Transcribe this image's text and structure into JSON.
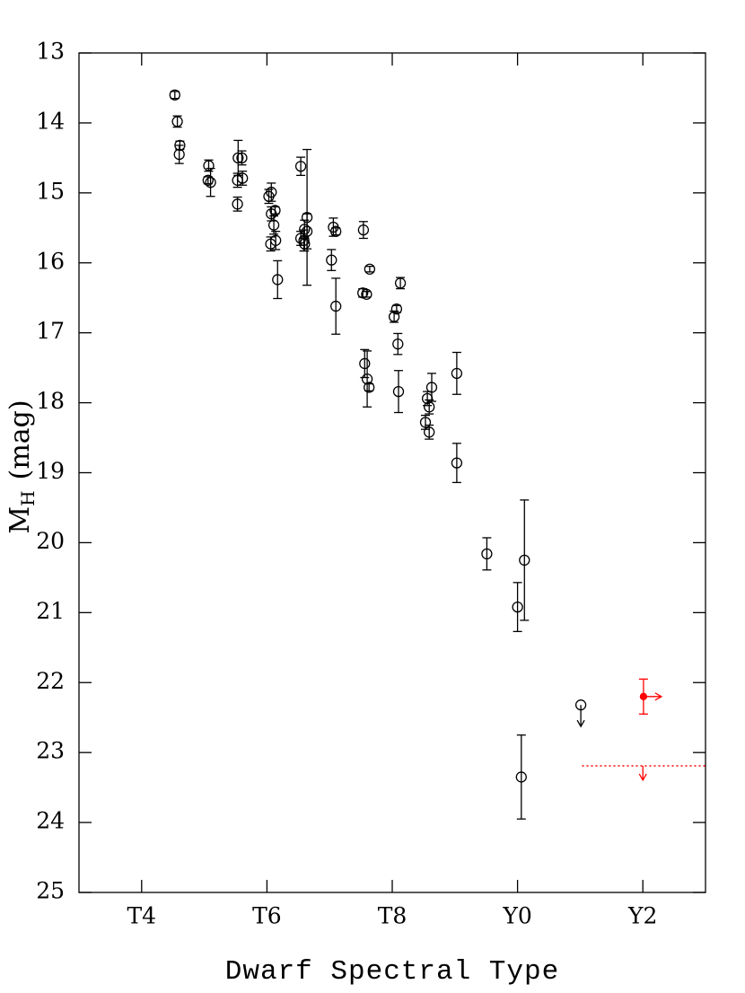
{
  "chart_data": {
    "type": "scatter",
    "xlabel": "Dwarf Spectral Type",
    "ylabel": {
      "main": "M",
      "sub": "H",
      "unit": "(mag)"
    },
    "xlim": [
      3,
      13
    ],
    "ylim": [
      13,
      25
    ],
    "y_inverted": true,
    "xticks": [
      {
        "value": 4,
        "label": "T4"
      },
      {
        "value": 6,
        "label": "T6"
      },
      {
        "value": 8,
        "label": "T8"
      },
      {
        "value": 10,
        "label": "Y0"
      },
      {
        "value": 12,
        "label": "Y2"
      }
    ],
    "yticks": [
      13,
      14,
      15,
      16,
      17,
      18,
      19,
      20,
      21,
      22,
      23,
      24,
      25
    ],
    "series": [
      {
        "color": "#000000",
        "marker": "open",
        "x": [
          4.53,
          4.57,
          4.61,
          4.6,
          5.07,
          5.06,
          5.1,
          5.54,
          5.6,
          5.61,
          5.53,
          5.53,
          6.03,
          6.07,
          6.07,
          6.13,
          6.11,
          6.06,
          6.14,
          6.17,
          6.54,
          6.54,
          6.59,
          6.6,
          6.6,
          6.64,
          6.64,
          7.06,
          7.1,
          7.03,
          7.1,
          7.54,
          7.53,
          7.59,
          7.64,
          7.56,
          7.6,
          7.63,
          8.03,
          8.07,
          8.13,
          8.09,
          8.1,
          8.53,
          8.56,
          8.59,
          8.59,
          8.63,
          9.03,
          9.03,
          9.51,
          10.0,
          10.11,
          10.06
        ],
        "values": [
          13.6,
          13.98,
          14.32,
          14.45,
          14.61,
          14.82,
          14.85,
          14.5,
          14.5,
          14.79,
          14.82,
          15.16,
          15.05,
          14.99,
          15.3,
          15.25,
          15.46,
          15.73,
          15.68,
          16.24,
          14.62,
          15.65,
          15.68,
          15.73,
          15.52,
          15.35,
          15.55,
          15.49,
          15.55,
          15.96,
          16.62,
          15.53,
          16.43,
          16.45,
          16.09,
          17.44,
          17.66,
          17.78,
          16.77,
          16.66,
          16.29,
          17.16,
          17.84,
          18.28,
          17.94,
          18.06,
          18.42,
          17.78,
          17.58,
          18.86,
          20.16,
          20.92,
          20.25,
          23.35
        ],
        "errors": [
          0.05,
          0.08,
          0.06,
          0.13,
          0.08,
          0.05,
          0.2,
          0.25,
          0.1,
          0.1,
          0.1,
          0.1,
          0.1,
          0.13,
          0.1,
          0.05,
          0.13,
          0.1,
          0.13,
          0.27,
          0.13,
          0.1,
          0.15,
          0.1,
          0.13,
          0.97,
          0.25,
          0.13,
          0.05,
          0.15,
          0.4,
          0.12,
          0.06,
          0.04,
          0.04,
          0.2,
          0.4,
          0.05,
          0.08,
          0.05,
          0.08,
          0.15,
          0.3,
          0.1,
          0.1,
          0.1,
          0.1,
          0.2,
          0.3,
          0.28,
          0.23,
          0.35,
          0.86,
          0.6
        ]
      },
      {
        "color": "#000000",
        "marker": "open",
        "limit": "down",
        "x": [
          11.01
        ],
        "values": [
          22.32
        ]
      },
      {
        "color": "#ff0000",
        "marker": "filled",
        "limit": "right",
        "x": [
          12.01
        ],
        "values": [
          22.2
        ],
        "errors": [
          0.25
        ]
      }
    ],
    "hlines": [
      {
        "value": 23.19,
        "xmin": 11.03,
        "color": "#ff0000",
        "style": "dotted",
        "arrow_down_at": 12
      }
    ]
  }
}
